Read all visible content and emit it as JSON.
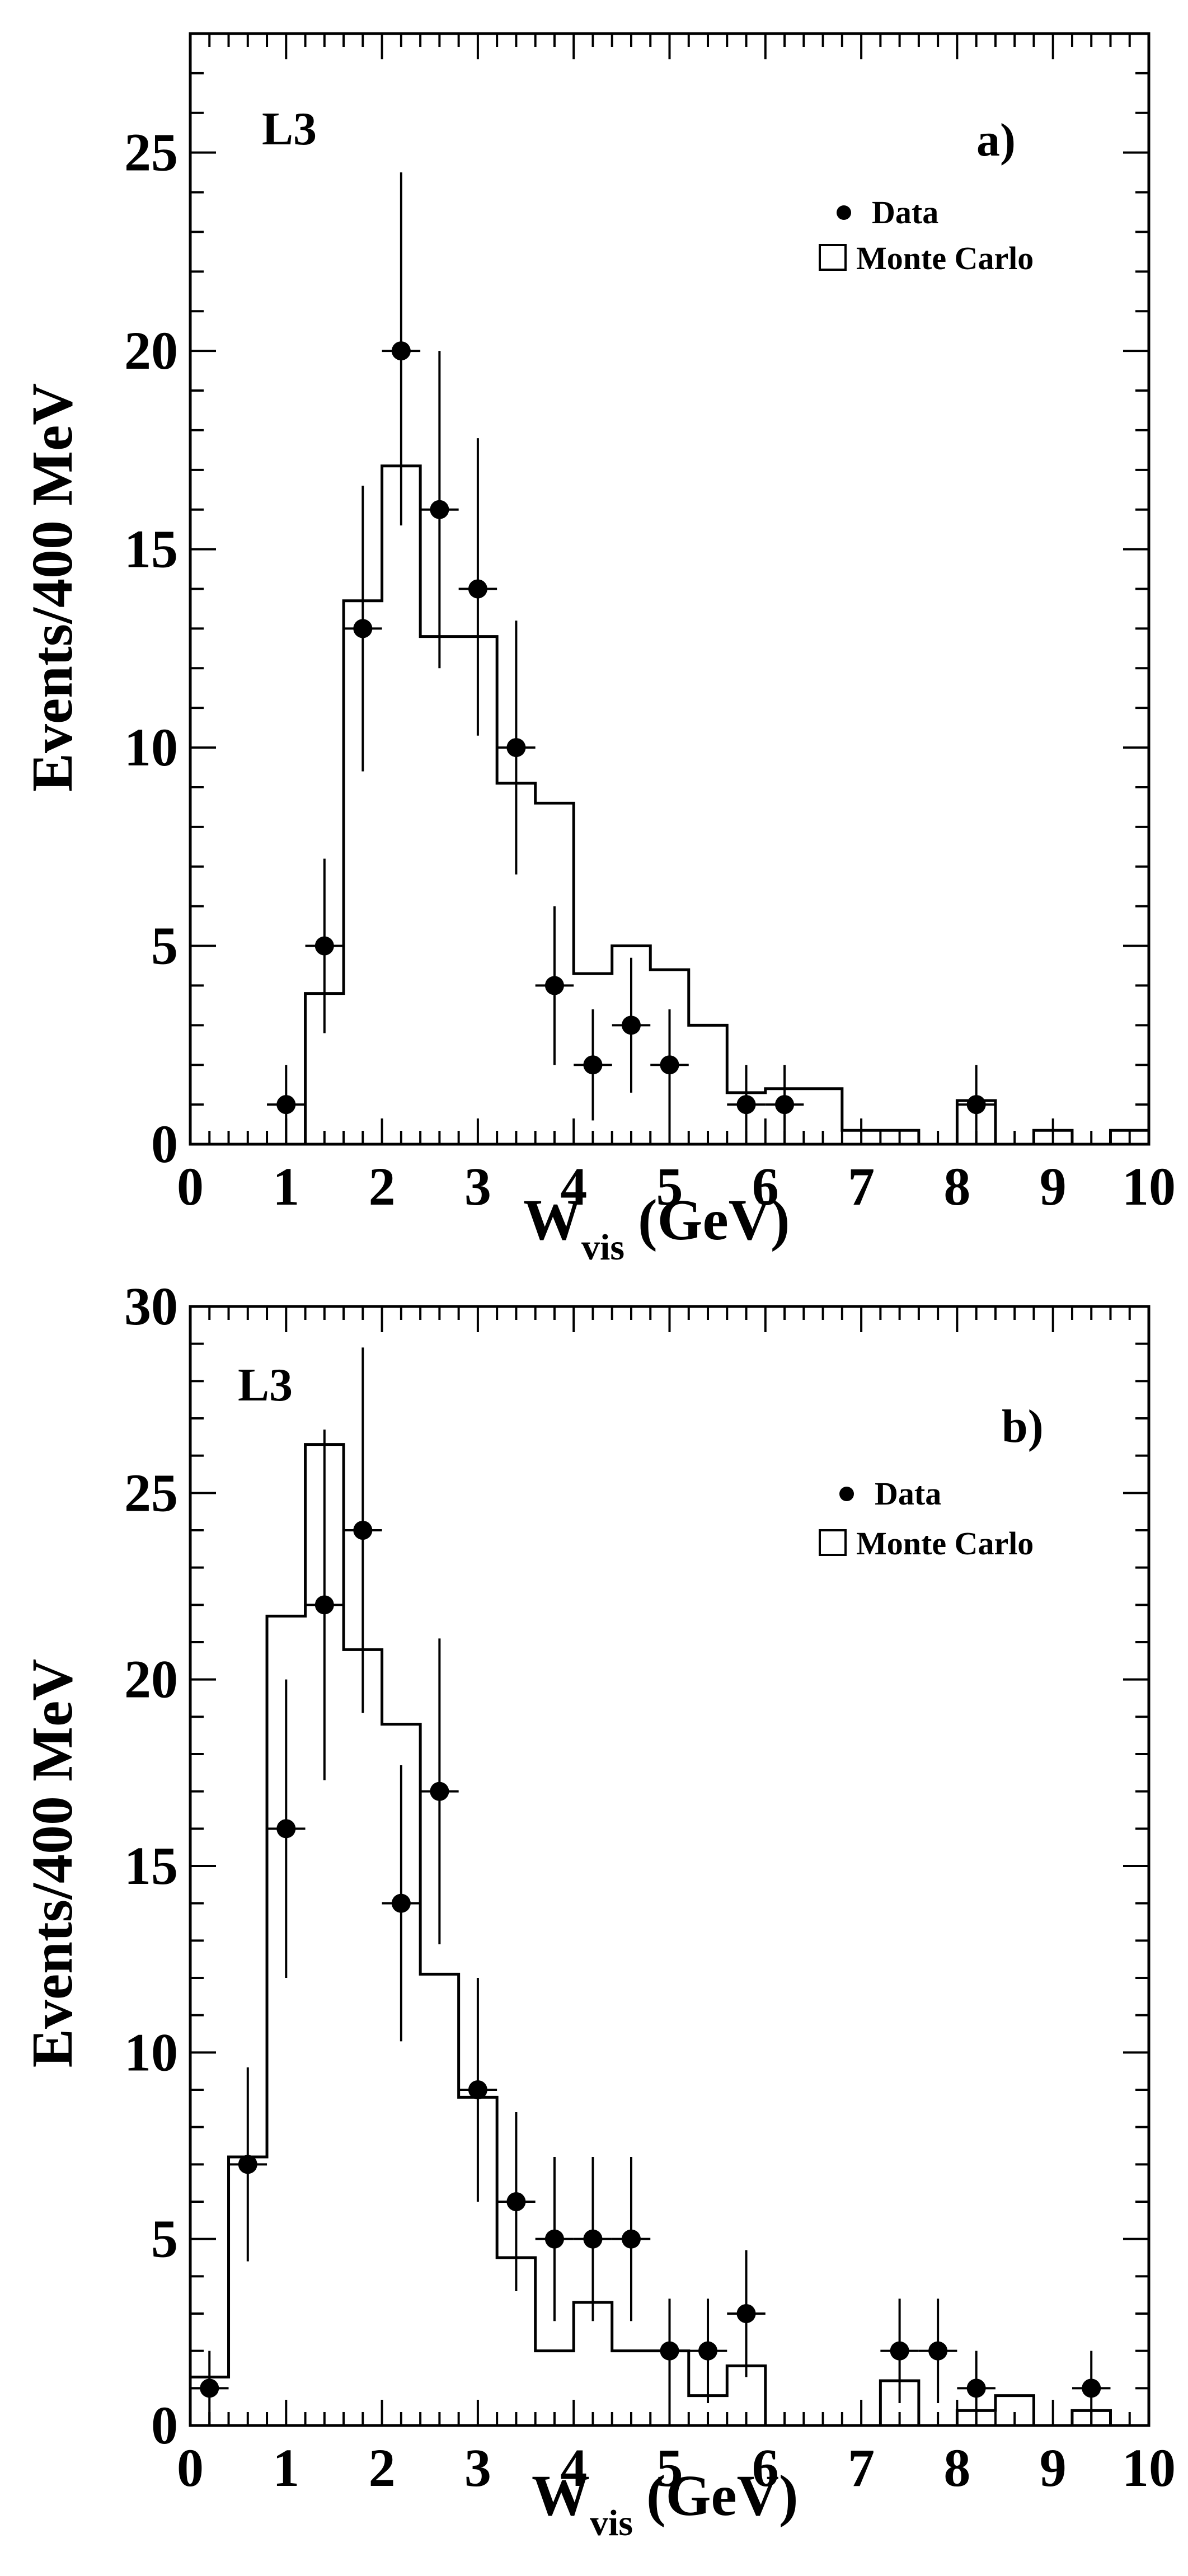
{
  "chart_data": [
    {
      "type": "bar",
      "panel_label": "a)",
      "experiment_label": "L3",
      "xlabel": "W",
      "xlabel_sub": "vis",
      "xlabel_unit": "(GeV)",
      "ylabel": "Events/400 MeV",
      "xlim": [
        0,
        10
      ],
      "ylim": [
        0,
        28
      ],
      "x_ticks": [
        0,
        1,
        2,
        3,
        4,
        5,
        6,
        7,
        8,
        9,
        10
      ],
      "y_ticks": [
        0,
        5,
        10,
        15,
        20,
        25
      ],
      "legend": [
        {
          "symbol": "filled-circle",
          "label": "Data"
        },
        {
          "symbol": "open-box",
          "label": "Monte Carlo"
        }
      ],
      "legend_position": "top-right",
      "monte_carlo": {
        "bin_edges": [
          0,
          0.4,
          0.8,
          1.2,
          1.6,
          2.0,
          2.4,
          2.8,
          3.2,
          3.6,
          4.0,
          4.4,
          4.8,
          5.2,
          5.6,
          6.0,
          6.4,
          6.8,
          7.2,
          7.6,
          8.0,
          8.4,
          8.8,
          9.2,
          9.6,
          10.0
        ],
        "values": [
          0,
          0,
          0,
          3.8,
          13.7,
          17.1,
          12.8,
          12.8,
          9.1,
          8.6,
          4.3,
          5.0,
          4.4,
          3.0,
          1.3,
          1.4,
          1.4,
          0.35,
          0.35,
          0,
          1.1,
          0,
          0.35,
          0,
          0.35
        ]
      },
      "data": {
        "x": [
          1.0,
          1.4,
          1.8,
          2.2,
          2.6,
          3.0,
          3.4,
          3.8,
          4.2,
          4.6,
          5.0,
          5.8,
          6.2,
          8.2
        ],
        "y": [
          1,
          5,
          13,
          20,
          16,
          14,
          10,
          4,
          2,
          3,
          2,
          1,
          1,
          1
        ],
        "yerr_low": [
          1.0,
          2.2,
          3.6,
          4.4,
          4.0,
          3.7,
          3.2,
          2.0,
          1.4,
          1.7,
          1.4,
          1.0,
          1.0,
          1.0
        ],
        "yerr_high": [
          1.0,
          2.2,
          3.6,
          4.5,
          4.0,
          3.8,
          3.2,
          2.0,
          1.4,
          1.7,
          1.4,
          1.0,
          1.0,
          1.0
        ],
        "xerr": 0.2
      }
    },
    {
      "type": "bar",
      "panel_label": "b)",
      "experiment_label": "L3",
      "xlabel": "W",
      "xlabel_sub": "vis",
      "xlabel_unit": "(GeV)",
      "ylabel": "Events/400 MeV",
      "xlim": [
        0,
        10
      ],
      "ylim": [
        0,
        30
      ],
      "x_ticks": [
        0,
        1,
        2,
        3,
        4,
        5,
        6,
        7,
        8,
        9,
        10
      ],
      "y_ticks": [
        0,
        5,
        10,
        15,
        20,
        25,
        30
      ],
      "legend": [
        {
          "symbol": "filled-circle",
          "label": "Data"
        },
        {
          "symbol": "open-box",
          "label": "Monte Carlo"
        }
      ],
      "legend_position": "top-right",
      "monte_carlo": {
        "bin_edges": [
          0,
          0.4,
          0.8,
          1.2,
          1.6,
          2.0,
          2.4,
          2.8,
          3.2,
          3.6,
          4.0,
          4.4,
          4.8,
          5.2,
          5.6,
          6.0,
          6.4,
          6.8,
          7.2,
          7.6,
          8.0,
          8.4,
          8.8,
          9.2,
          9.6,
          10.0
        ],
        "values": [
          1.3,
          7.2,
          21.7,
          26.3,
          20.8,
          18.8,
          12.1,
          8.8,
          4.5,
          2.0,
          3.3,
          2.0,
          2.0,
          0.8,
          1.6,
          0,
          0,
          0,
          1.2,
          0,
          0.4,
          0.8,
          0,
          0.4,
          0
        ]
      },
      "data": {
        "x": [
          0.2,
          0.6,
          1.0,
          1.4,
          1.8,
          2.2,
          2.6,
          3.0,
          3.4,
          3.8,
          4.2,
          4.6,
          5.0,
          5.4,
          5.8,
          7.4,
          7.8,
          8.2,
          9.4
        ],
        "y": [
          1,
          7,
          16,
          22,
          24,
          14,
          17,
          9,
          6,
          5,
          5,
          5,
          2,
          2,
          3,
          2,
          2,
          1,
          1
        ],
        "yerr_low": [
          1.0,
          2.6,
          4.0,
          4.7,
          4.9,
          3.7,
          4.1,
          3.0,
          2.4,
          2.2,
          2.2,
          2.2,
          1.4,
          1.4,
          1.7,
          1.4,
          1.4,
          1.0,
          1.0
        ],
        "yerr_high": [
          1.0,
          2.6,
          4.0,
          4.7,
          4.9,
          3.7,
          4.1,
          3.0,
          2.4,
          2.2,
          2.2,
          2.2,
          1.4,
          1.4,
          1.7,
          1.4,
          1.4,
          1.0,
          1.0
        ],
        "xerr": 0.2
      }
    }
  ]
}
